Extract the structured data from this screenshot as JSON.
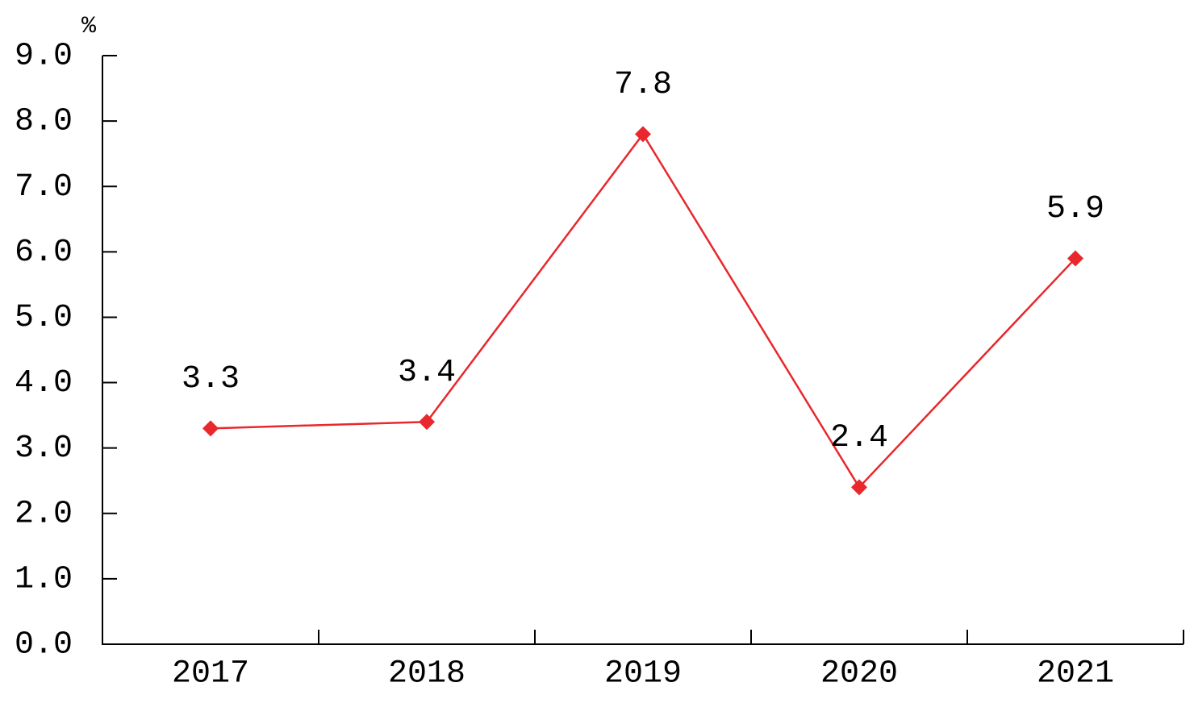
{
  "chart_data": {
    "type": "line",
    "ylabel": "%",
    "categories": [
      "2017",
      "2018",
      "2019",
      "2020",
      "2021"
    ],
    "values": [
      3.3,
      3.4,
      7.8,
      2.4,
      5.9
    ],
    "color": "#e8282d",
    "data_labels": true,
    "ylim": [
      0,
      9
    ],
    "yticks": [
      {
        "value": 0,
        "label": "0.0"
      },
      {
        "value": 1,
        "label": "1.0"
      },
      {
        "value": 2,
        "label": "2.0"
      },
      {
        "value": 3,
        "label": "3.0"
      },
      {
        "value": 4,
        "label": "4.0"
      },
      {
        "value": 5,
        "label": "5.0"
      },
      {
        "value": 6,
        "label": "6.0"
      },
      {
        "value": 7,
        "label": "7.0"
      },
      {
        "value": 8,
        "label": "8.0"
      },
      {
        "value": 9,
        "label": "9.0"
      }
    ],
    "grid": false
  }
}
